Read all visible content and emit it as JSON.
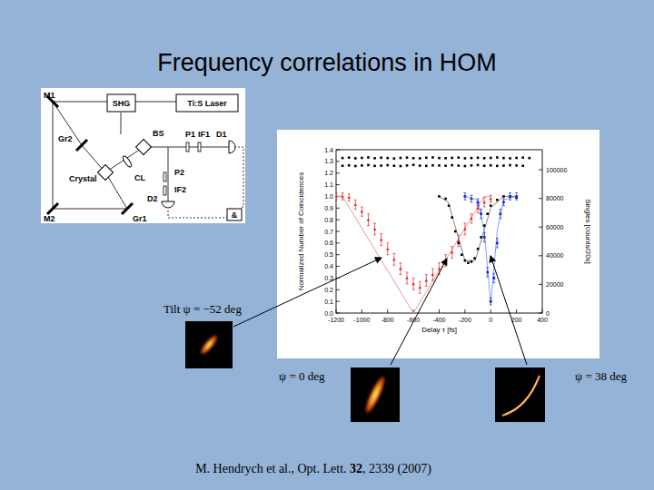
{
  "title": "Frequency correlations in HOM",
  "setup": {
    "labels": [
      "M1",
      "SHG",
      "Ti:S Laser",
      "Gr2",
      "BS",
      "P1",
      "IF1",
      "D1",
      "Crystal",
      "CL",
      "P2",
      "IF2",
      "M2",
      "Gr1",
      "D2",
      "&"
    ]
  },
  "insets": [
    {
      "label": "Tilt ψ = −52 deg"
    },
    {
      "label": "ψ = 0 deg"
    },
    {
      "label": "ψ = 38 deg"
    }
  ],
  "citation": [
    "M. Hendrych et al., Opt. Lett. ",
    "32",
    ", 2339 (2007)"
  ],
  "chart_data": {
    "type": "scatter",
    "x_label": "Delay τ [fs]",
    "y_label": "Normalized Number of Coincidences",
    "y2_label": "Singles [counts/20s]",
    "xlim": [
      -1200,
      400
    ],
    "xticks": [
      -1200,
      -1000,
      -800,
      -600,
      -400,
      -200,
      0,
      200,
      400
    ],
    "ylim": [
      0,
      1.4
    ],
    "yticks": [
      {
        "value": 0,
        "label": "0.0"
      },
      0.1,
      0.2,
      0.3,
      0.4,
      0.5,
      0.6,
      0.7,
      0.8,
      0.9,
      {
        "value": 1,
        "label": "1.0"
      },
      1.1,
      1.2,
      1.3,
      1.4
    ],
    "y2lim": [
      0,
      114000
    ],
    "y2ticks": [
      0,
      20000,
      40000,
      60000,
      80000,
      100000
    ],
    "grid": false,
    "series": [
      {
        "type": "scatter",
        "color": "#e02828",
        "marker": "triangle",
        "x": [
          -1200,
          -1150,
          -1100,
          -1050,
          -1000,
          -950,
          -900,
          -850,
          -800,
          -750,
          -700,
          -650,
          -600,
          -550,
          -500,
          -450,
          -400,
          -350,
          -300,
          -250,
          -200,
          -150,
          -100,
          -50,
          0
        ],
        "values": [
          1.0,
          1.0,
          0.99,
          0.93,
          0.87,
          0.8,
          0.72,
          0.63,
          0.55,
          0.46,
          0.38,
          0.3,
          0.25,
          0.22,
          0.28,
          0.33,
          0.38,
          0.45,
          0.52,
          0.62,
          0.72,
          0.81,
          0.9,
          0.95,
          0.98
        ],
        "error": [
          0.03,
          0.03,
          0.03,
          0.04,
          0.04,
          0.05,
          0.05,
          0.05,
          0.05,
          0.05,
          0.05,
          0.05,
          0.05,
          0.05,
          0.05,
          0.05,
          0.05,
          0.05,
          0.05,
          0.05,
          0.05,
          0.04,
          0.04,
          0.04,
          0.03
        ]
      },
      {
        "type": "scatter",
        "color": "#000000",
        "marker": "square",
        "x": [
          -400,
          -350,
          -325,
          -300,
          -275,
          -250,
          -225,
          -200,
          -175,
          -150,
          -125,
          -100,
          -75,
          -50,
          -25,
          0,
          50,
          100,
          150,
          200
        ],
        "values": [
          1.0,
          0.98,
          0.92,
          0.82,
          0.7,
          0.6,
          0.5,
          0.45,
          0.43,
          0.44,
          0.47,
          0.55,
          0.65,
          0.75,
          0.85,
          0.92,
          0.97,
          1.0,
          1.0,
          0.99
        ]
      },
      {
        "type": "scatter",
        "color": "#1a30d0",
        "marker": "circle",
        "x": [
          -200,
          -150,
          -100,
          -75,
          -50,
          -25,
          0,
          25,
          50,
          75,
          100,
          150,
          200
        ],
        "values": [
          1.0,
          0.98,
          0.95,
          0.85,
          0.65,
          0.35,
          0.1,
          0.3,
          0.6,
          0.85,
          0.95,
          1.0,
          1.0
        ],
        "error": [
          0.03,
          0.03,
          0.03,
          0.04,
          0.04,
          0.04,
          0.03,
          0.04,
          0.04,
          0.04,
          0.03,
          0.03,
          0.03
        ]
      },
      {
        "type": "line",
        "color": "#f08888",
        "line_style": "solid",
        "x": [
          -1200,
          -1150,
          -600,
          -50,
          0
        ],
        "values": [
          1.0,
          1.0,
          0.0,
          1.0,
          1.0
        ]
      },
      {
        "type": "line",
        "color": "#777777",
        "line_style": "solid",
        "x": [
          -400,
          -330,
          -200,
          -120,
          0,
          100,
          200
        ],
        "values": [
          1.0,
          0.95,
          0.45,
          0.45,
          0.9,
          1.0,
          1.0
        ]
      },
      {
        "type": "line",
        "color": "#8090ff",
        "line_style": "solid",
        "x": [
          -200,
          -100,
          -50,
          0,
          50,
          100,
          200
        ],
        "values": [
          1.0,
          0.97,
          0.7,
          0.08,
          0.7,
          0.97,
          1.0
        ]
      },
      {
        "type": "scatter",
        "axis": "y2",
        "color": "#000000",
        "marker": "square",
        "x": [
          -1150,
          -1100,
          -1050,
          -1000,
          -950,
          -900,
          -850,
          -800,
          -750,
          -700,
          -650,
          -600,
          -550,
          -500,
          -450,
          -400,
          -350,
          -300,
          -250,
          -200,
          -150,
          -100,
          -50,
          0,
          50,
          100,
          150,
          200,
          250,
          300
        ],
        "values": [
          108200,
          108500,
          108000,
          108300,
          108600,
          108100,
          108400,
          108200,
          107900,
          108300,
          108500,
          108100,
          108000,
          108400,
          108600,
          108200,
          108100,
          108300,
          108500,
          108000,
          108200,
          108400,
          108100,
          108300,
          108600,
          108200,
          108000,
          108300,
          108500,
          108200
        ]
      },
      {
        "type": "scatter",
        "axis": "y2",
        "color": "#000000",
        "marker": "square",
        "x": [
          -1150,
          -1100,
          -1050,
          -1000,
          -950,
          -900,
          -850,
          -800,
          -750,
          -700,
          -650,
          -600,
          -550,
          -500,
          -450,
          -400,
          -350,
          -300,
          -250,
          -200,
          -150,
          -100,
          -50,
          0,
          50,
          100,
          150,
          200,
          250
        ],
        "values": [
          102800,
          103100,
          102600,
          103000,
          103300,
          102700,
          102900,
          103200,
          102800,
          102600,
          103000,
          103400,
          102900,
          102700,
          103100,
          103000,
          102800,
          103200,
          102900,
          102600,
          103000,
          103300,
          102800,
          103100,
          102700,
          102900,
          103200,
          103000,
          102800
        ]
      }
    ]
  }
}
